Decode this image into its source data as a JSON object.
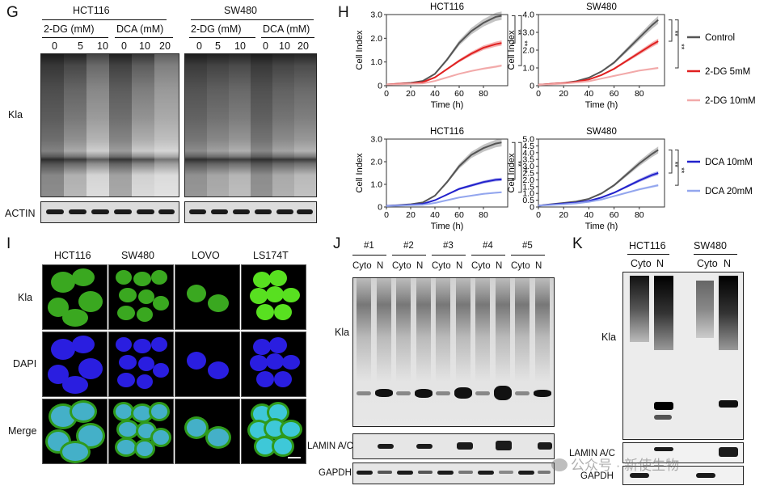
{
  "panels": {
    "G": {
      "letter": "G",
      "cell_lines": [
        "HCT116",
        "SW480"
      ],
      "treatments": [
        "2-DG (mM)",
        "DCA (mM)",
        "2-DG (mM)",
        "DCA (mM)"
      ],
      "doses": [
        "0",
        "5",
        "10",
        "0",
        "10",
        "20",
        "0",
        "5",
        "10",
        "0",
        "10",
        "20"
      ],
      "row_labels": {
        "kla": "Kla",
        "actin": "ACTIN"
      }
    },
    "H": {
      "letter": "H",
      "legend": [
        "Control",
        "2-DG 5mM",
        "2-DG 10mM",
        "DCA 10mM",
        "DCA 20mM"
      ],
      "legend_colors": {
        "Control": "#555555",
        "2-DG 5mM": "#e02020",
        "2-DG 10mM": "#f2a9a9",
        "DCA 10mM": "#2222cc",
        "DCA 20mM": "#93a6ee"
      },
      "significance": "**"
    },
    "I": {
      "letter": "I",
      "columns": [
        "HCT116",
        "SW480",
        "LOVO",
        "LS174T"
      ],
      "rows": [
        "Kla",
        "DAPI",
        "Merge"
      ]
    },
    "J": {
      "letter": "J",
      "samples": [
        "#1",
        "#2",
        "#3",
        "#4",
        "#5"
      ],
      "fractions": [
        "Cyto",
        "N"
      ],
      "row_labels": {
        "kla": "Kla",
        "lamin": "LAMIN A/C",
        "gapdh": "GAPDH"
      }
    },
    "K": {
      "letter": "K",
      "cell_lines": [
        "HCT116",
        "SW480"
      ],
      "fractions": [
        "Cyto",
        "N"
      ],
      "row_labels": {
        "kla": "Kla",
        "lamin": "LAMIN A/C",
        "gapdh": "GAPDH"
      }
    }
  },
  "watermark": "公众号 · 新使生物",
  "chart_data": [
    {
      "type": "line",
      "title": "HCT116",
      "xlabel": "Time (h)",
      "ylabel": "Cell Index",
      "xlim": [
        0,
        100
      ],
      "ylim": [
        0,
        3.0
      ],
      "xticks": [
        0,
        20,
        40,
        60,
        80
      ],
      "yticks": [
        0,
        1.0,
        2.0,
        3.0
      ],
      "x": [
        0,
        10,
        20,
        30,
        40,
        50,
        60,
        70,
        80,
        90,
        95
      ],
      "series": [
        {
          "name": "Control",
          "values": [
            0.05,
            0.08,
            0.12,
            0.2,
            0.5,
            1.1,
            1.8,
            2.3,
            2.65,
            2.9,
            2.95
          ]
        },
        {
          "name": "2-DG 5mM",
          "values": [
            0.05,
            0.08,
            0.1,
            0.15,
            0.35,
            0.7,
            1.05,
            1.35,
            1.6,
            1.75,
            1.8
          ]
        },
        {
          "name": "2-DG 10mM",
          "values": [
            0.05,
            0.06,
            0.08,
            0.1,
            0.2,
            0.35,
            0.5,
            0.62,
            0.72,
            0.8,
            0.85
          ]
        }
      ]
    },
    {
      "type": "line",
      "title": "SW480",
      "xlabel": "Time (h)",
      "ylabel": "Cell Index",
      "xlim": [
        0,
        100
      ],
      "ylim": [
        0,
        4.0
      ],
      "xticks": [
        0,
        20,
        40,
        60,
        80
      ],
      "yticks": [
        0,
        1.0,
        2.0,
        3.0,
        4.0
      ],
      "x": [
        0,
        10,
        20,
        30,
        40,
        50,
        60,
        70,
        80,
        90,
        95
      ],
      "series": [
        {
          "name": "Control",
          "values": [
            0.05,
            0.1,
            0.15,
            0.25,
            0.45,
            0.8,
            1.3,
            2.0,
            2.7,
            3.4,
            3.7
          ]
        },
        {
          "name": "2-DG 5mM",
          "values": [
            0.05,
            0.1,
            0.15,
            0.22,
            0.35,
            0.6,
            0.95,
            1.4,
            1.85,
            2.3,
            2.5
          ]
        },
        {
          "name": "2-DG 10mM",
          "values": [
            0.05,
            0.08,
            0.12,
            0.18,
            0.25,
            0.4,
            0.55,
            0.7,
            0.85,
            0.95,
            1.0
          ]
        }
      ]
    },
    {
      "type": "line",
      "title": "HCT116",
      "xlabel": "Time (h)",
      "ylabel": "Cell Index",
      "xlim": [
        0,
        100
      ],
      "ylim": [
        0,
        3.0
      ],
      "xticks": [
        0,
        20,
        40,
        60,
        80
      ],
      "yticks": [
        0,
        1.0,
        2.0,
        3.0
      ],
      "x": [
        0,
        10,
        20,
        30,
        40,
        50,
        60,
        70,
        80,
        90,
        95
      ],
      "series": [
        {
          "name": "Control",
          "values": [
            0.05,
            0.08,
            0.12,
            0.2,
            0.5,
            1.1,
            1.8,
            2.3,
            2.6,
            2.8,
            2.85
          ]
        },
        {
          "name": "DCA 10mM",
          "values": [
            0.05,
            0.07,
            0.1,
            0.14,
            0.3,
            0.55,
            0.8,
            0.95,
            1.1,
            1.2,
            1.22
          ]
        },
        {
          "name": "DCA 20mM",
          "values": [
            0.04,
            0.06,
            0.08,
            0.1,
            0.18,
            0.3,
            0.42,
            0.5,
            0.58,
            0.63,
            0.65
          ]
        }
      ]
    },
    {
      "type": "line",
      "title": "SW480",
      "xlabel": "Time (h)",
      "ylabel": "Cell Index",
      "xlim": [
        0,
        100
      ],
      "ylim": [
        0,
        5.0
      ],
      "xticks": [
        0,
        20,
        40,
        60,
        80
      ],
      "yticks": [
        0,
        0.5,
        1.0,
        1.5,
        2.0,
        2.5,
        3.0,
        3.5,
        4.0,
        4.5,
        5.0
      ],
      "x": [
        0,
        10,
        20,
        30,
        40,
        50,
        60,
        70,
        80,
        90,
        95
      ],
      "series": [
        {
          "name": "Control",
          "values": [
            0.1,
            0.2,
            0.3,
            0.4,
            0.6,
            1.0,
            1.6,
            2.4,
            3.2,
            3.9,
            4.2
          ]
        },
        {
          "name": "DCA 10mM",
          "values": [
            0.1,
            0.18,
            0.25,
            0.32,
            0.45,
            0.7,
            1.05,
            1.5,
            1.95,
            2.35,
            2.5
          ]
        },
        {
          "name": "DCA 20mM",
          "values": [
            0.1,
            0.15,
            0.2,
            0.27,
            0.38,
            0.55,
            0.8,
            1.05,
            1.3,
            1.5,
            1.6
          ]
        }
      ]
    }
  ]
}
